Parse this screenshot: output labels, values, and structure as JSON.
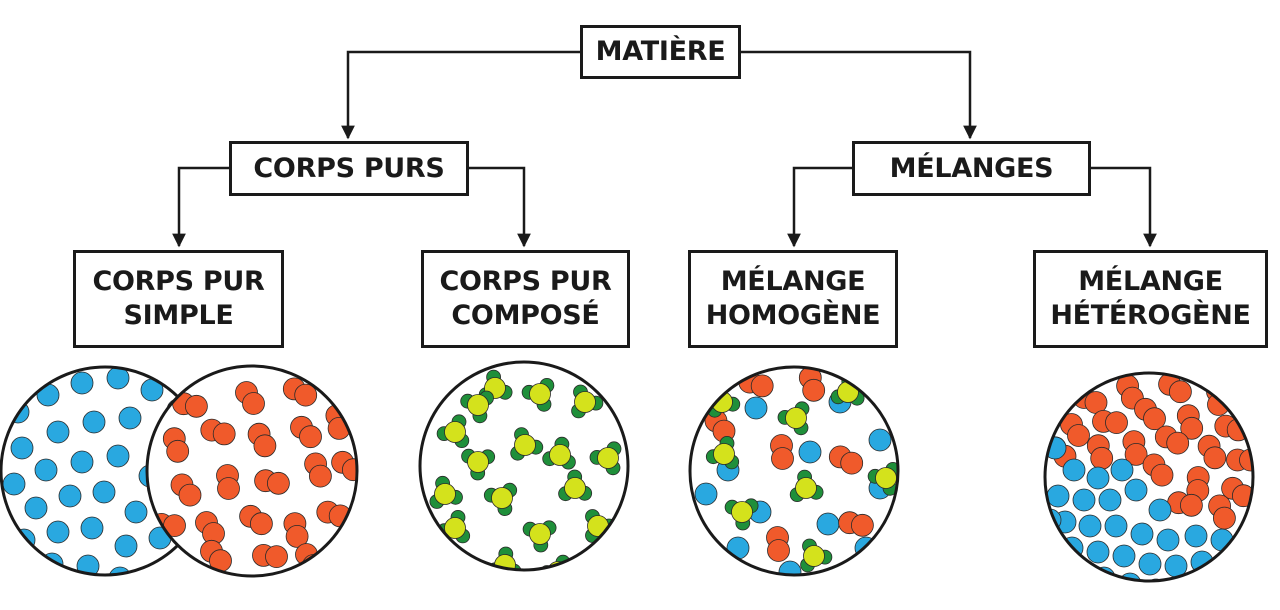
{
  "root": {
    "label": "MATIÈRE"
  },
  "level1": [
    {
      "label": "CORPS PURS"
    },
    {
      "label": "MÉLANGES"
    }
  ],
  "level2": [
    {
      "line1": "CORPS PUR",
      "line2": "SIMPLE"
    },
    {
      "line1": "CORPS PUR",
      "line2": "COMPOSÉ"
    },
    {
      "line1": "MÉLANGE",
      "line2": "HOMOGÈNE"
    },
    {
      "line1": "MÉLANGE",
      "line2": "HÉTÉROGÈNE"
    }
  ],
  "colors": {
    "line": "#1a1a1a",
    "blue_particle": "#29a8e0",
    "red_particle": "#f05a2b",
    "yellow_particle": "#d4e21c",
    "green_particle": "#1f8f3a"
  }
}
